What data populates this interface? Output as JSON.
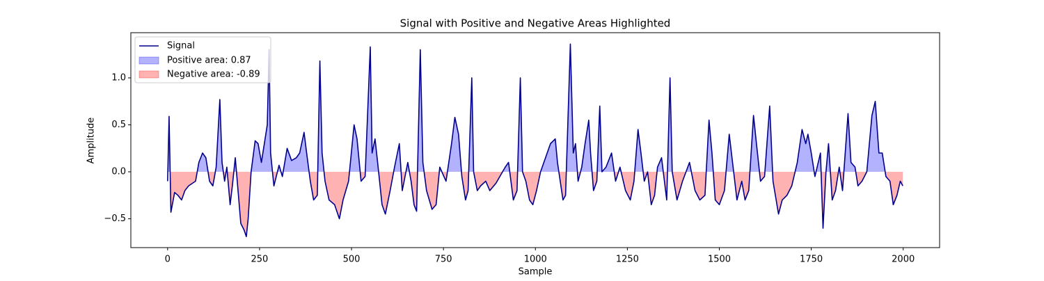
{
  "chart_data": {
    "type": "line",
    "title": "Signal with Positive and Negative Areas Highlighted",
    "xlabel": "Sample",
    "ylabel": "Amplitude",
    "x": [
      0,
      4,
      9,
      19,
      28,
      38,
      47,
      57,
      76,
      85,
      95,
      104,
      114,
      123,
      132,
      142,
      148,
      155,
      161,
      170,
      176,
      184,
      199,
      208,
      214,
      219,
      227,
      238,
      246,
      255,
      265,
      271,
      276,
      280,
      289,
      303,
      312,
      325,
      337,
      350,
      359,
      371,
      378,
      388,
      397,
      407,
      414,
      420,
      428,
      439,
      454,
      467,
      477,
      492,
      507,
      515,
      526,
      537,
      551,
      556,
      564,
      571,
      583,
      592,
      605,
      617,
      630,
      638,
      653,
      662,
      670,
      677,
      687,
      694,
      704,
      719,
      730,
      740,
      757,
      772,
      781,
      791,
      800,
      810,
      817,
      827,
      832,
      842,
      851,
      865,
      876,
      893,
      918,
      927,
      940,
      950,
      959,
      965,
      974,
      984,
      993,
      1003,
      1014,
      1041,
      1054,
      1060,
      1075,
      1082,
      1095,
      1103,
      1109,
      1116,
      1126,
      1135,
      1145,
      1150,
      1158,
      1167,
      1175,
      1181,
      1192,
      1207,
      1218,
      1230,
      1245,
      1258,
      1268,
      1279,
      1287,
      1296,
      1305,
      1315,
      1324,
      1332,
      1343,
      1357,
      1366,
      1372,
      1385,
      1400,
      1419,
      1434,
      1447,
      1461,
      1472,
      1480,
      1489,
      1500,
      1514,
      1527,
      1536,
      1548,
      1561,
      1570,
      1580,
      1593,
      1601,
      1612,
      1623,
      1637,
      1646,
      1661,
      1671,
      1684,
      1697,
      1712,
      1725,
      1735,
      1741,
      1750,
      1760,
      1775,
      1782,
      1790,
      1797,
      1807,
      1816,
      1826,
      1835,
      1850,
      1858,
      1869,
      1877,
      1888,
      1901,
      1915,
      1924,
      1934,
      1943,
      1953,
      1964,
      1973,
      1983,
      1992,
      1999
    ],
    "series": [
      {
        "name": "Signal",
        "color": "#00008b",
        "values": [
          -0.1,
          0.59,
          -0.43,
          -0.22,
          -0.25,
          -0.3,
          -0.2,
          -0.15,
          -0.1,
          0.1,
          0.2,
          0.15,
          -0.1,
          -0.15,
          0.05,
          0.77,
          0.1,
          -0.1,
          0.05,
          -0.35,
          -0.15,
          0.15,
          -0.55,
          -0.62,
          -0.69,
          -0.5,
          0.0,
          0.33,
          0.3,
          0.1,
          0.35,
          0.5,
          1.3,
          0.2,
          -0.15,
          0.07,
          -0.05,
          0.25,
          0.12,
          0.15,
          0.2,
          0.42,
          0.2,
          -0.1,
          -0.3,
          -0.25,
          1.18,
          0.2,
          -0.1,
          -0.3,
          -0.35,
          -0.5,
          -0.3,
          -0.1,
          0.5,
          0.35,
          -0.1,
          -0.05,
          1.33,
          0.2,
          0.35,
          0.1,
          -0.35,
          -0.45,
          -0.2,
          0.05,
          0.3,
          -0.2,
          0.1,
          -0.1,
          -0.35,
          -0.42,
          1.3,
          0.1,
          -0.2,
          -0.4,
          -0.35,
          0.05,
          -0.1,
          0.3,
          0.58,
          0.4,
          -0.05,
          -0.3,
          -0.2,
          1.0,
          0.0,
          -0.2,
          -0.15,
          -0.1,
          -0.2,
          -0.12,
          0.05,
          0.1,
          -0.3,
          -0.2,
          1.0,
          0.0,
          -0.1,
          -0.3,
          -0.35,
          -0.2,
          0.0,
          0.3,
          0.35,
          0.1,
          -0.3,
          -0.25,
          1.36,
          0.2,
          0.3,
          -0.1,
          0.05,
          0.3,
          0.55,
          0.2,
          -0.2,
          -0.1,
          0.7,
          0.0,
          0.05,
          0.2,
          -0.1,
          0.05,
          -0.2,
          -0.3,
          -0.1,
          0.45,
          0.2,
          -0.1,
          0.0,
          -0.35,
          -0.25,
          0.05,
          0.15,
          -0.3,
          1.0,
          0.0,
          -0.3,
          -0.1,
          0.1,
          -0.2,
          -0.3,
          -0.25,
          0.55,
          0.2,
          -0.3,
          -0.35,
          -0.2,
          0.4,
          0.1,
          -0.3,
          -0.1,
          -0.3,
          -0.2,
          0.6,
          0.3,
          -0.1,
          -0.05,
          0.7,
          -0.1,
          -0.45,
          -0.3,
          -0.25,
          -0.15,
          0.1,
          0.45,
          0.3,
          0.4,
          0.2,
          -0.05,
          0.2,
          -0.6,
          0.0,
          0.3,
          -0.3,
          -0.2,
          0.05,
          -0.2,
          0.62,
          0.1,
          0.05,
          -0.15,
          -0.1,
          0.0,
          0.6,
          0.75,
          0.2,
          0.2,
          -0.05,
          -0.1,
          -0.35,
          -0.25,
          -0.1,
          -0.15
        ]
      }
    ],
    "areas": [
      {
        "name": "Positive area: 0.87",
        "color": "#0000ff",
        "side": "positive"
      },
      {
        "name": "Negative area: -0.89",
        "color": "#ff0000",
        "side": "negative"
      }
    ],
    "xlim": [
      -99.95,
      2098.95
    ],
    "xticks": [
      0,
      250,
      500,
      750,
      1000,
      1250,
      1500,
      1750,
      2000
    ],
    "ylim": [
      -0.807,
      1.481
    ],
    "yticks": [
      {
        "value": -0.5,
        "label": "−0.5"
      },
      {
        "value": 0,
        "label": "0.0"
      },
      {
        "value": 0.5,
        "label": "0.5"
      },
      {
        "value": 1,
        "label": "1.0"
      }
    ],
    "legend": "upper left",
    "grid": false
  }
}
